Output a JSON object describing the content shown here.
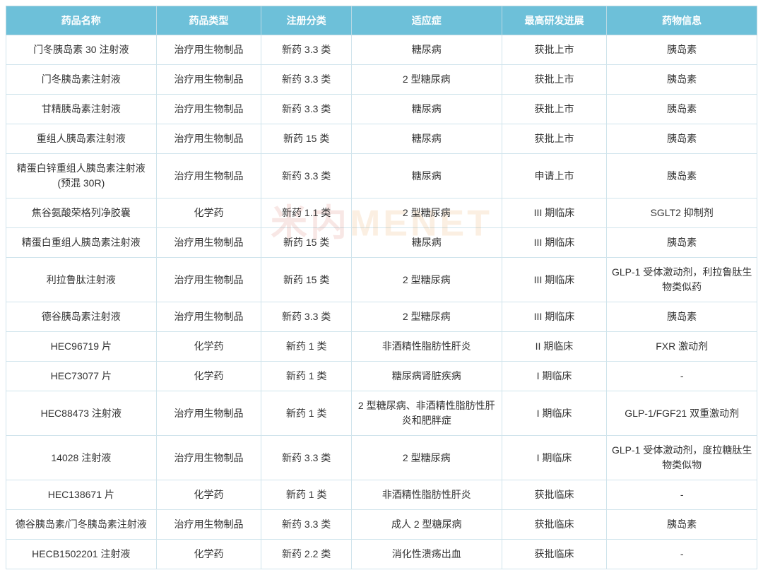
{
  "watermark": {
    "left": "米内",
    "right": "MENET"
  },
  "table": {
    "header_bg": "#6dc0d9",
    "header_fg": "#ffffff",
    "border_color": "#d0e4ec",
    "font_size": 14,
    "columns": [
      {
        "key": "name",
        "label": "药品名称",
        "width": "20%"
      },
      {
        "key": "type",
        "label": "药品类型",
        "width": "14%"
      },
      {
        "key": "reg",
        "label": "注册分类",
        "width": "12%"
      },
      {
        "key": "indication",
        "label": "适应症",
        "width": "20%"
      },
      {
        "key": "stage",
        "label": "最高研发进展",
        "width": "14%"
      },
      {
        "key": "info",
        "label": "药物信息",
        "width": "20%"
      }
    ],
    "rows": [
      {
        "name": "门冬胰岛素 30 注射液",
        "type": "治疗用生物制品",
        "reg": "新药 3.3 类",
        "indication": "糖尿病",
        "stage": "获批上市",
        "info": "胰岛素"
      },
      {
        "name": "门冬胰岛素注射液",
        "type": "治疗用生物制品",
        "reg": "新药 3.3 类",
        "indication": "2 型糖尿病",
        "stage": "获批上市",
        "info": "胰岛素"
      },
      {
        "name": "甘精胰岛素注射液",
        "type": "治疗用生物制品",
        "reg": "新药 3.3 类",
        "indication": "糖尿病",
        "stage": "获批上市",
        "info": "胰岛素"
      },
      {
        "name": "重组人胰岛素注射液",
        "type": "治疗用生物制品",
        "reg": "新药 15 类",
        "indication": "糖尿病",
        "stage": "获批上市",
        "info": "胰岛素"
      },
      {
        "name": "精蛋白锌重组人胰岛素注射液(预混 30R)",
        "type": "治疗用生物制品",
        "reg": "新药 3.3 类",
        "indication": "糖尿病",
        "stage": "申请上市",
        "info": "胰岛素"
      },
      {
        "name": "焦谷氨酸荣格列净胶囊",
        "type": "化学药",
        "reg": "新药 1.1 类",
        "indication": "2 型糖尿病",
        "stage": "III 期临床",
        "info": "SGLT2 抑制剂"
      },
      {
        "name": "精蛋白重组人胰岛素注射液",
        "type": "治疗用生物制品",
        "reg": "新药 15 类",
        "indication": "糖尿病",
        "stage": "III 期临床",
        "info": "胰岛素"
      },
      {
        "name": "利拉鲁肽注射液",
        "type": "治疗用生物制品",
        "reg": "新药 15 类",
        "indication": "2 型糖尿病",
        "stage": "III 期临床",
        "info": "GLP-1 受体激动剂，利拉鲁肽生物类似药"
      },
      {
        "name": "德谷胰岛素注射液",
        "type": "治疗用生物制品",
        "reg": "新药 3.3 类",
        "indication": "2 型糖尿病",
        "stage": "III 期临床",
        "info": "胰岛素"
      },
      {
        "name": "HEC96719 片",
        "type": "化学药",
        "reg": "新药 1 类",
        "indication": "非酒精性脂肪性肝炎",
        "stage": "II 期临床",
        "info": "FXR 激动剂"
      },
      {
        "name": "HEC73077 片",
        "type": "化学药",
        "reg": "新药 1 类",
        "indication": "糖尿病肾脏疾病",
        "stage": "I 期临床",
        "info": "-"
      },
      {
        "name": "HEC88473 注射液",
        "type": "治疗用生物制品",
        "reg": "新药 1 类",
        "indication": "2 型糖尿病、非酒精性脂肪性肝炎和肥胖症",
        "stage": "I 期临床",
        "info": "GLP-1/FGF21 双重激动剂"
      },
      {
        "name": "14028 注射液",
        "type": "治疗用生物制品",
        "reg": "新药 3.3 类",
        "indication": "2 型糖尿病",
        "stage": "I 期临床",
        "info": "GLP-1 受体激动剂，度拉糖肽生物类似物"
      },
      {
        "name": "HEC138671 片",
        "type": "化学药",
        "reg": "新药 1 类",
        "indication": "非酒精性脂肪性肝炎",
        "stage": "获批临床",
        "info": "-"
      },
      {
        "name": "德谷胰岛素/门冬胰岛素注射液",
        "type": "治疗用生物制品",
        "reg": "新药 3.3 类",
        "indication": "成人 2 型糖尿病",
        "stage": "获批临床",
        "info": "胰岛素"
      },
      {
        "name": "HECB1502201 注射液",
        "type": "化学药",
        "reg": "新药 2.2 类",
        "indication": "消化性溃疡出血",
        "stage": "获批临床",
        "info": "-"
      }
    ]
  }
}
